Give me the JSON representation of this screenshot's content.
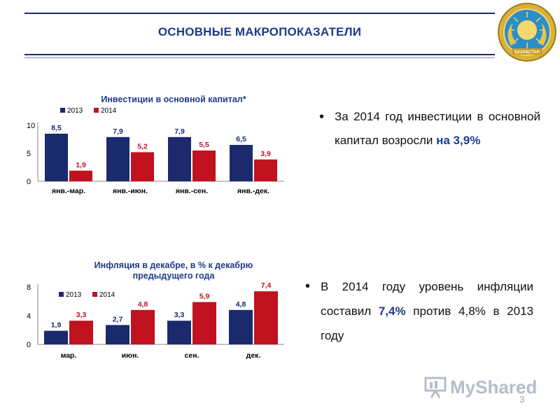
{
  "header": {
    "title": "ОСНОВНЫЕ МАКРОПОКАЗАТЕЛИ"
  },
  "emblem": {
    "text": "ҚАЗАҚСТАН",
    "icon": "kazakhstan-emblem-icon"
  },
  "colors": {
    "series_2013": "#1a2a6c",
    "series_2014": "#c0121f",
    "header": "#1f3a8a"
  },
  "chart_data": [
    {
      "type": "bar",
      "title": "Инвестиции в основной капитал*",
      "categories": [
        "янв.-мар.",
        "янв.-июн.",
        "янв.-сен.",
        "янв.-дек."
      ],
      "series": [
        {
          "name": "2013",
          "values": [
            8.5,
            7.9,
            7.9,
            6.5
          ],
          "labels": [
            "8,5",
            "7,9",
            "7,9",
            "6,5"
          ]
        },
        {
          "name": "2014",
          "values": [
            1.9,
            5.2,
            5.5,
            3.9
          ],
          "labels": [
            "1,9",
            "5,2",
            "5,5",
            "3,9"
          ]
        }
      ],
      "ylim": [
        0,
        10
      ],
      "yticks": [
        "0",
        "5",
        "10"
      ],
      "legend": "top-left"
    },
    {
      "type": "bar",
      "title": "Инфляция в декабре, в % к декабрю предыдущего года",
      "title_lines": [
        "Инфляция в декабре, в %  к декабрю",
        "предыдущего года"
      ],
      "categories": [
        "мар.",
        "июн.",
        "сен.",
        "дек."
      ],
      "series": [
        {
          "name": "2013",
          "values": [
            1.9,
            2.7,
            3.3,
            4.8
          ],
          "labels": [
            "1,9",
            "2,7",
            "3,3",
            "4,8"
          ]
        },
        {
          "name": "2014",
          "values": [
            3.3,
            4.8,
            5.9,
            7.4
          ],
          "labels": [
            "3,3",
            "4,8",
            "5,9",
            "7,4"
          ]
        }
      ],
      "ylim": [
        0,
        8
      ],
      "yticks": [
        "0",
        "4",
        "8"
      ],
      "legend": "top-left"
    }
  ],
  "bullets": {
    "b1": {
      "text": "За 2014 год инвестиции в основной капитал возросли ",
      "highlight": "на 3,9%"
    },
    "b2": {
      "text1": "В 2014 году уровень инфляции составил ",
      "highlight": "7,4%",
      "text2": " против 4,8% в 2013 году"
    }
  },
  "watermark": {
    "text": "MyShared",
    "icon": "presentation-screen-icon"
  },
  "page": {
    "number": "3"
  }
}
